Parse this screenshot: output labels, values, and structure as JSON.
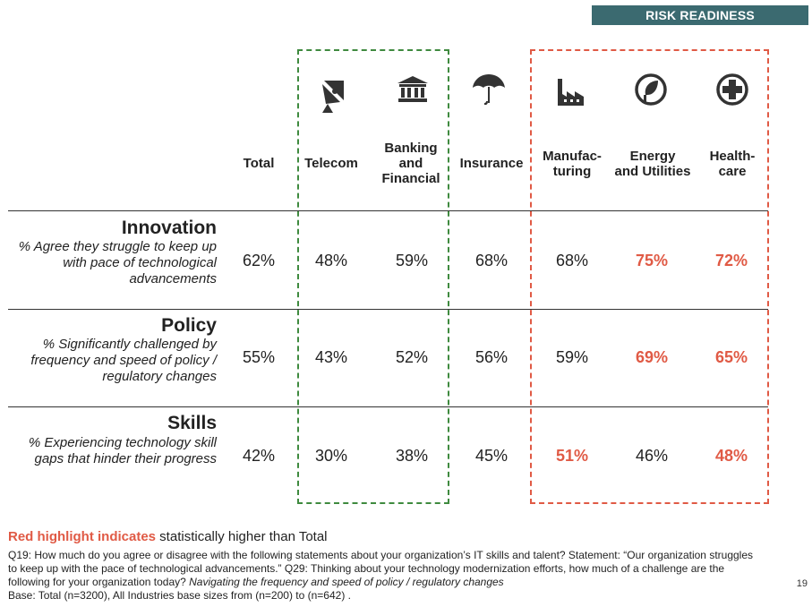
{
  "badge": "RISK READINESS",
  "headers": {
    "total": "Total",
    "telecom": "Telecom",
    "banking": "Banking\nand\nFinancial",
    "insurance": "Insurance",
    "manufacturing": "Manufac-\nturing",
    "energy": "Energy\nand Utilities",
    "health": "Health-\ncare"
  },
  "icons": [
    "satellite-dish-icon",
    "bank-icon",
    "umbrella-icon",
    "factory-icon",
    "leaf-plug-icon",
    "medical-cross-icon"
  ],
  "rows": [
    {
      "title": "Innovation",
      "desc": "% Agree they struggle to keep up with pace of technological advancements",
      "values": [
        "62%",
        "48%",
        "59%",
        "68%",
        "68%",
        "75%",
        "72%"
      ],
      "highlight": [
        false,
        false,
        false,
        false,
        false,
        true,
        true
      ]
    },
    {
      "title": "Policy",
      "desc": "% Significantly challenged by frequency and speed of policy / regulatory changes",
      "values": [
        "55%",
        "43%",
        "52%",
        "56%",
        "59%",
        "69%",
        "65%"
      ],
      "highlight": [
        false,
        false,
        false,
        false,
        false,
        true,
        true
      ]
    },
    {
      "title": "Skills",
      "desc": "% Experiencing technology skill gaps that hinder their progress",
      "values": [
        "42%",
        "30%",
        "38%",
        "45%",
        "51%",
        "46%",
        "48%"
      ],
      "highlight": [
        false,
        false,
        false,
        false,
        true,
        false,
        true
      ]
    }
  ],
  "legend": {
    "red": "Red highlight indicates",
    "rest": " statistically higher than Total"
  },
  "footnote": {
    "a": "Q19: How much do you agree or disagree with the following statements about your organization’s IT skills and talent? Statement: “Our organization struggles to keep up with the pace of technological advancements.” Q29: Thinking about your technology modernization efforts, how much of a challenge are the following for your organization today? ",
    "b": "Navigating the frequency and speed of policy / regulatory changes",
    "c": "Base: Total (n=3200), All Industries base sizes from (n=200) to (n=642) ."
  },
  "page_number": "19",
  "colors": {
    "highlight": "#e05a45",
    "green_box": "#3f8a3f",
    "badge": "#3b6a70"
  }
}
